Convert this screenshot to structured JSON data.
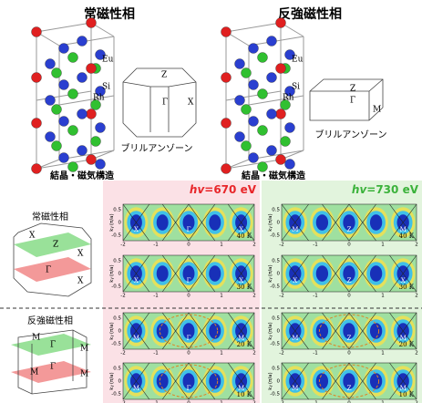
{
  "top": {
    "left": {
      "title": "常磁性相",
      "atoms": [
        "Eu",
        "Si",
        "Rh"
      ],
      "bz_label": "ブリルアンゾーン",
      "bz_points": [
        "Z",
        "Γ",
        "X"
      ],
      "caption": "結晶・磁気構造"
    },
    "right": {
      "title": "反強磁性相",
      "atoms": [
        "Eu",
        "Si",
        "Rh"
      ],
      "bz_label": "ブリルアンゾーン",
      "bz_points": [
        "Z",
        "Γ",
        "M"
      ],
      "caption": "結晶・磁気構造"
    }
  },
  "bottom": {
    "phase_labels": [
      "常磁性相",
      "反強磁性相"
    ],
    "schematic_points": [
      [
        "X",
        "Z",
        "X",
        "Γ",
        "X"
      ],
      [
        "M",
        "Γ",
        "M",
        "M",
        "Γ",
        "M"
      ]
    ],
    "columns": [
      {
        "hv": "hv",
        "energy": "=670 eV",
        "panels": [
          {
            "temperature": "40 K",
            "points": [
              "X",
              "Γ",
              "X"
            ]
          },
          {
            "temperature": "30 K",
            "points": [
              "X",
              "Γ",
              "X"
            ]
          },
          {
            "temperature": "20 K",
            "points": [
              "M",
              "Γ",
              "M"
            ]
          },
          {
            "temperature": "10 K",
            "points": [
              "M",
              "Γ",
              "M"
            ]
          }
        ]
      },
      {
        "hv": "hv",
        "energy": "=730 eV",
        "panels": [
          {
            "temperature": "40 K",
            "points": [
              "M",
              "Z",
              "M"
            ]
          },
          {
            "temperature": "30 K",
            "points": [
              "X",
              "Z",
              "X"
            ]
          },
          {
            "temperature": "20 K",
            "points": [
              "M",
              "Z",
              "M"
            ]
          },
          {
            "temperature": "10 K",
            "points": [
              "M",
              "Z",
              "M"
            ]
          }
        ]
      }
    ],
    "y_label": {
      "base": "k",
      "sub": "y",
      "unit": "(π/a)"
    },
    "x_ticks": [
      "-2",
      "-1",
      "0",
      "1",
      "2"
    ],
    "y_ticks": [
      "0.5",
      "0",
      "-0.5"
    ]
  }
}
